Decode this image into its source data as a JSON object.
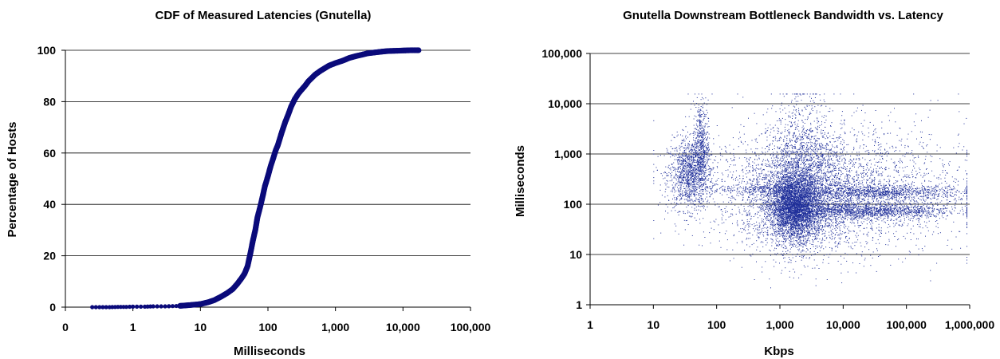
{
  "chart_data": [
    {
      "type": "scatter",
      "title": "CDF of Measured Latencies (Gnutella)",
      "xlabel": "Milliseconds",
      "ylabel": "Percentage of Hosts",
      "x_scale": "log",
      "xlim": [
        0.1,
        100000
      ],
      "ylim": [
        0,
        100
      ],
      "x_ticks": [
        "0",
        "1",
        "10",
        "100",
        "1,000",
        "10,000",
        "100,000"
      ],
      "y_ticks": [
        "0",
        "20",
        "40",
        "60",
        "80",
        "100"
      ],
      "grid": "horizontal",
      "legend": "none",
      "marker_color": "#0a0a7a",
      "series": [
        {
          "x": [
            0.25,
            0.32,
            0.45,
            0.6,
            0.8,
            1.0,
            1.5,
            2,
            3,
            5,
            7,
            10,
            13,
            16,
            20,
            25,
            30,
            35,
            40,
            45,
            50,
            55,
            60,
            65,
            70,
            75,
            80,
            85,
            90,
            100,
            110,
            120,
            130,
            140,
            160,
            180,
            200,
            220,
            250,
            280,
            300,
            350,
            400,
            500,
            600,
            800,
            1000,
            1300,
            1600,
            2000,
            2500,
            3000,
            4000,
            5000,
            6000,
            8000,
            10000,
            13000,
            17000
          ],
          "y": [
            0,
            0,
            0,
            0.1,
            0.1,
            0.2,
            0.2,
            0.3,
            0.3,
            0.5,
            0.8,
            1.2,
            1.9,
            2.7,
            4,
            5.5,
            7,
            9,
            11,
            13,
            16,
            21,
            26,
            30,
            35,
            38,
            41,
            44,
            47,
            51,
            55,
            58,
            61,
            63,
            68,
            72,
            75,
            78,
            81,
            83,
            84,
            86,
            88,
            90.5,
            92,
            94,
            95,
            96,
            97,
            97.7,
            98.3,
            98.8,
            99.2,
            99.5,
            99.7,
            99.8,
            99.9,
            100,
            100
          ]
        }
      ]
    },
    {
      "type": "scatter",
      "title": "Gnutella Downstream Bottleneck Bandwidth vs. Latency",
      "xlabel": "Kbps",
      "ylabel": "Milliseconds",
      "x_scale": "log",
      "y_scale": "log",
      "xlim": [
        1,
        1000000
      ],
      "ylim": [
        1,
        100000
      ],
      "x_ticks": [
        "1",
        "10",
        "100",
        "1,000",
        "10,000",
        "100,000",
        "1,000,000"
      ],
      "y_ticks": [
        "1",
        "10",
        "100",
        "1,000",
        "10,000",
        "100,000"
      ],
      "grid": "horizontal",
      "legend": "none",
      "marker_color": "#1f2f9a",
      "series": [
        {
          "clusters": [
            {
              "x_center": 38,
              "x_spread": 0.18,
              "y_center": 400,
              "y_spread": 0.35,
              "count": 1300
            },
            {
              "x_center": 55,
              "x_spread": 0.06,
              "y_center": 1500,
              "y_spread": 0.45,
              "count": 500
            },
            {
              "x_center": 1700,
              "x_spread": 0.18,
              "y_center": 90,
              "y_spread": 0.32,
              "count": 3200
            },
            {
              "x_center": 2000,
              "x_spread": 0.45,
              "y_center": 150,
              "y_spread": 0.55,
              "count": 2600
            },
            {
              "x_center": 25000,
              "x_spread": 0.7,
              "y_center": 75,
              "y_spread": 0.08,
              "count": 1400
            },
            {
              "x_center": 40000,
              "x_spread": 0.65,
              "y_center": 175,
              "y_spread": 0.07,
              "count": 1000
            },
            {
              "x_center": 8000,
              "x_spread": 1.0,
              "y_center": 200,
              "y_spread": 0.65,
              "count": 2600
            },
            {
              "x_center": 500,
              "x_spread": 0.35,
              "y_center": 200,
              "y_spread": 0.05,
              "count": 250
            },
            {
              "x_center": 2300,
              "x_spread": 0.25,
              "y_center": 1200,
              "y_spread": 0.6,
              "count": 700
            }
          ]
        }
      ]
    }
  ]
}
